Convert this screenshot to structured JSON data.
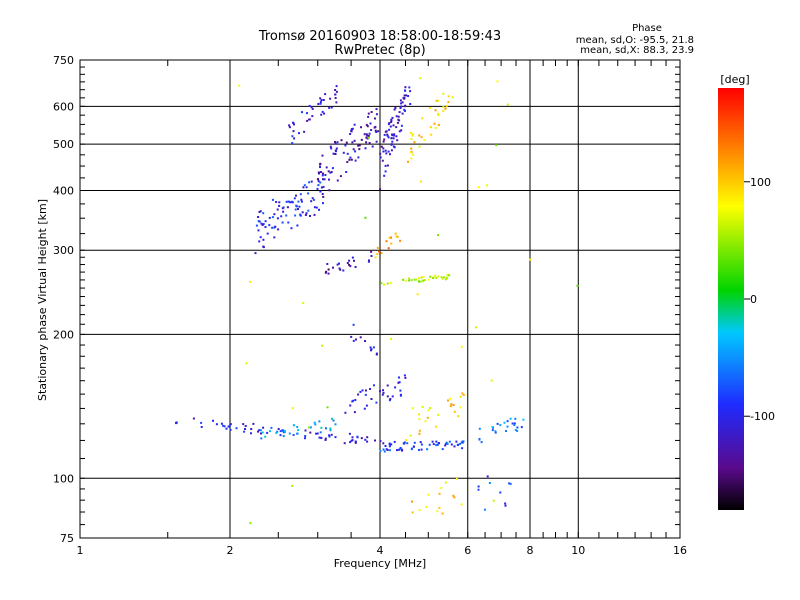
{
  "chart_data": {
    "type": "scatter",
    "title": "Tromsø 20160903 18:58:00-18:59:43",
    "subtitle": "RwPretec (8p)",
    "xlabel": "Frequency [MHz]",
    "ylabel": "Stationary phase Virtual Height [km]",
    "x_scale": "log",
    "y_scale": "log",
    "xlim": [
      1,
      16
    ],
    "ylim": [
      75,
      750
    ],
    "x_ticks": [
      1,
      2,
      4,
      6,
      8,
      10,
      16
    ],
    "x_tick_labels": [
      "1",
      "2",
      "4",
      "6",
      "8",
      "10",
      "16"
    ],
    "y_ticks": [
      75,
      100,
      200,
      300,
      400,
      500,
      600,
      750
    ],
    "y_tick_labels": [
      "75",
      "100",
      "200",
      "300",
      "400",
      "500",
      "600",
      "750"
    ],
    "grid": true,
    "stats": {
      "heading": "Phase",
      "o_mode": "mean, sd,O: -95.5, 21.8",
      "x_mode": "mean, sd,X:  88.3, 23.9"
    },
    "colorbar": {
      "label": "[deg]",
      "range": [
        -180,
        180
      ],
      "ticks": [
        100,
        0,
        -100
      ],
      "tick_labels": [
        "100",
        "0",
        "-100"
      ]
    },
    "traces": [
      {
        "f0": 1.55,
        "f1": 4.3,
        "h0": 132,
        "h1": 118,
        "spread": 3,
        "n": 70,
        "phase": -105
      },
      {
        "f0": 4.0,
        "f1": 5.9,
        "h0": 116,
        "h1": 118,
        "spread": 2.5,
        "n": 55,
        "phase": -85
      },
      {
        "f0": 2.3,
        "f1": 3.3,
        "h0": 124,
        "h1": 130,
        "spread": 4,
        "n": 30,
        "phase": -45
      },
      {
        "f0": 6.3,
        "f1": 7.8,
        "h0": 122,
        "h1": 132,
        "spread": 5,
        "n": 25,
        "phase": -55
      },
      {
        "f0": 3.4,
        "f1": 4.5,
        "h0": 140,
        "h1": 158,
        "spread": 8,
        "n": 35,
        "phase": -110
      },
      {
        "f0": 4.5,
        "f1": 6.0,
        "h0": 130,
        "h1": 145,
        "spread": 10,
        "n": 25,
        "phase": 90
      },
      {
        "f0": 2.25,
        "f1": 3.1,
        "h0": 330,
        "h1": 400,
        "spread": 35,
        "n": 90,
        "phase": -95
      },
      {
        "f0": 3.0,
        "f1": 4.0,
        "h0": 420,
        "h1": 560,
        "spread": 50,
        "n": 90,
        "phase": -120
      },
      {
        "f0": 4.0,
        "f1": 4.6,
        "h0": 450,
        "h1": 640,
        "spread": 50,
        "n": 80,
        "phase": -115
      },
      {
        "f0": 4.5,
        "f1": 5.5,
        "h0": 480,
        "h1": 620,
        "spread": 40,
        "n": 35,
        "phase": 95
      },
      {
        "f0": 2.6,
        "f1": 3.3,
        "h0": 520,
        "h1": 640,
        "spread": 30,
        "n": 40,
        "phase": -105
      },
      {
        "f0": 3.1,
        "f1": 3.9,
        "h0": 272,
        "h1": 292,
        "spread": 8,
        "n": 22,
        "phase": -125
      },
      {
        "f0": 4.0,
        "f1": 5.7,
        "h0": 256,
        "h1": 265,
        "spread": 3,
        "n": 35,
        "phase": 55
      },
      {
        "f0": 3.9,
        "f1": 4.4,
        "h0": 295,
        "h1": 320,
        "spread": 10,
        "n": 14,
        "phase": 120
      },
      {
        "f0": 3.5,
        "f1": 4.0,
        "h0": 205,
        "h1": 175,
        "spread": 10,
        "n": 12,
        "phase": -110
      },
      {
        "f0": 4.5,
        "f1": 6.0,
        "h0": 88,
        "h1": 95,
        "spread": 8,
        "n": 14,
        "phase": 100
      },
      {
        "f0": 6.2,
        "f1": 7.5,
        "h0": 88,
        "h1": 100,
        "spread": 10,
        "n": 10,
        "phase": -80
      },
      {
        "f0": 2.0,
        "f1": 10.0,
        "h0": 80,
        "h1": 700,
        "spread": 0,
        "n": 30,
        "phase": 60
      }
    ]
  }
}
